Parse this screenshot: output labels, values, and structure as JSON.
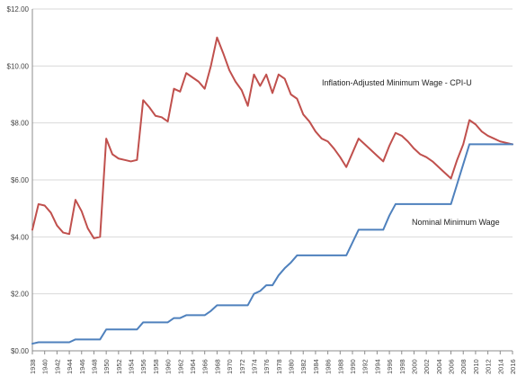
{
  "chart_data": {
    "type": "line",
    "title": "",
    "xlabel": "",
    "ylabel": "",
    "xlim": [
      1938,
      2016
    ],
    "ylim": [
      0,
      12
    ],
    "grid": "horizontal",
    "legend": "inline",
    "y_tick_labels": [
      "$0.00",
      "$2.00",
      "$4.00",
      "$6.00",
      "$8.00",
      "$10.00",
      "$12.00"
    ],
    "x_tick_labels": [
      "1938",
      "1940",
      "1942",
      "1944",
      "1946",
      "1948",
      "1950",
      "1952",
      "1954",
      "1956",
      "1958",
      "1960",
      "1962",
      "1964",
      "1966",
      "1968",
      "1970",
      "1972",
      "1974",
      "1976",
      "1978",
      "1980",
      "1982",
      "1984",
      "1986",
      "1988",
      "1990",
      "1992",
      "1994",
      "1996",
      "1998",
      "2000",
      "2002",
      "2004",
      "2006",
      "2008",
      "2010",
      "2012",
      "2014",
      "2016"
    ],
    "x": [
      1938,
      1939,
      1940,
      1941,
      1942,
      1943,
      1944,
      1945,
      1946,
      1947,
      1948,
      1949,
      1950,
      1951,
      1952,
      1953,
      1954,
      1955,
      1956,
      1957,
      1958,
      1959,
      1960,
      1961,
      1962,
      1963,
      1964,
      1965,
      1966,
      1967,
      1968,
      1969,
      1970,
      1971,
      1972,
      1973,
      1974,
      1975,
      1976,
      1977,
      1978,
      1979,
      1980,
      1981,
      1982,
      1983,
      1984,
      1985,
      1986,
      1987,
      1988,
      1989,
      1990,
      1991,
      1992,
      1993,
      1994,
      1995,
      1996,
      1997,
      1998,
      1999,
      2000,
      2001,
      2002,
      2003,
      2004,
      2005,
      2006,
      2007,
      2008,
      2009,
      2010,
      2011,
      2012,
      2013,
      2014,
      2015,
      2016
    ],
    "series": [
      {
        "name": "Inflation-Adjusted Minimum Wage - CPI-U",
        "color": "#c0504d",
        "values": [
          4.25,
          5.15,
          5.1,
          4.85,
          4.4,
          4.15,
          4.1,
          5.3,
          4.9,
          4.3,
          3.95,
          4.0,
          7.45,
          6.9,
          6.75,
          6.7,
          6.65,
          6.7,
          8.8,
          8.55,
          8.25,
          8.2,
          8.05,
          9.2,
          9.1,
          9.75,
          9.6,
          9.45,
          9.2,
          10.0,
          11.0,
          10.45,
          9.85,
          9.45,
          9.15,
          8.6,
          9.7,
          9.3,
          9.7,
          9.05,
          9.7,
          9.55,
          9.0,
          8.85,
          8.3,
          8.05,
          7.7,
          7.45,
          7.35,
          7.1,
          6.8,
          6.45,
          6.95,
          7.45,
          7.25,
          7.05,
          6.85,
          6.65,
          7.2,
          7.65,
          7.55,
          7.35,
          7.1,
          6.9,
          6.8,
          6.65,
          6.45,
          6.25,
          6.05,
          6.7,
          7.25,
          8.1,
          7.95,
          7.7,
          7.55,
          7.45,
          7.35,
          7.3,
          7.25
        ]
      },
      {
        "name": "Nominal Minimum Wage",
        "color": "#4f81bd",
        "values": [
          0.25,
          0.3,
          0.3,
          0.3,
          0.3,
          0.3,
          0.3,
          0.4,
          0.4,
          0.4,
          0.4,
          0.4,
          0.75,
          0.75,
          0.75,
          0.75,
          0.75,
          0.75,
          1.0,
          1.0,
          1.0,
          1.0,
          1.0,
          1.15,
          1.15,
          1.25,
          1.25,
          1.25,
          1.25,
          1.4,
          1.6,
          1.6,
          1.6,
          1.6,
          1.6,
          1.6,
          2.0,
          2.1,
          2.3,
          2.3,
          2.65,
          2.9,
          3.1,
          3.35,
          3.35,
          3.35,
          3.35,
          3.35,
          3.35,
          3.35,
          3.35,
          3.35,
          3.8,
          4.25,
          4.25,
          4.25,
          4.25,
          4.25,
          4.75,
          5.15,
          5.15,
          5.15,
          5.15,
          5.15,
          5.15,
          5.15,
          5.15,
          5.15,
          5.15,
          5.85,
          6.55,
          7.25,
          7.25,
          7.25,
          7.25,
          7.25,
          7.25,
          7.25,
          7.25
        ]
      }
    ]
  }
}
